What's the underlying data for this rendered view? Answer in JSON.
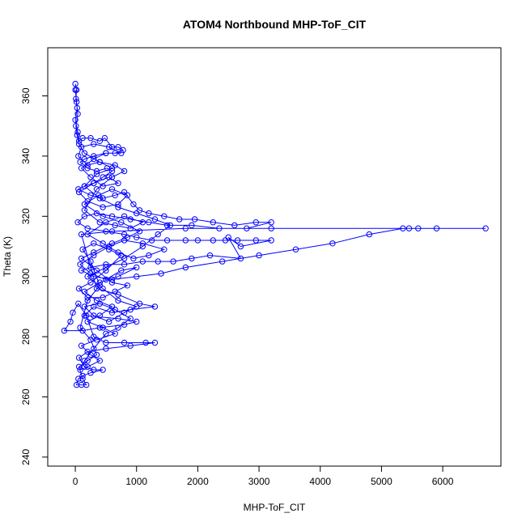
{
  "chart_data": {
    "type": "scatter",
    "title": "ATOM4 Northbound MHP-ToF_CIT",
    "xlabel": "MHP-ToF_CIT",
    "ylabel": "Theta (K)",
    "xlim": [
      -450,
      6950
    ],
    "ylim": [
      237,
      376
    ],
    "x_ticks": [
      0,
      1000,
      2000,
      3000,
      4000,
      5000,
      6000
    ],
    "y_ticks": [
      240,
      260,
      280,
      300,
      320,
      340,
      360
    ],
    "grid": false,
    "legend": "none",
    "series": [
      {
        "color": "#0000FF",
        "marker": "open-circle",
        "line": true,
        "points": [
          [
            0,
            364
          ],
          [
            20,
            362
          ],
          [
            10,
            359
          ],
          [
            30,
            356
          ],
          [
            0,
            352
          ],
          [
            40,
            348
          ],
          [
            60,
            345
          ],
          [
            120,
            346
          ],
          [
            250,
            346
          ],
          [
            400,
            345
          ],
          [
            480,
            346
          ],
          [
            600,
            343
          ],
          [
            700,
            343
          ],
          [
            780,
            342
          ],
          [
            650,
            341
          ],
          [
            500,
            341
          ],
          [
            300,
            340
          ],
          [
            150,
            339
          ],
          [
            80,
            338
          ],
          [
            200,
            336
          ],
          [
            350,
            335
          ],
          [
            520,
            336
          ],
          [
            600,
            335
          ],
          [
            450,
            333
          ],
          [
            300,
            331
          ],
          [
            150,
            330
          ],
          [
            50,
            329
          ],
          [
            250,
            327
          ],
          [
            450,
            326
          ],
          [
            650,
            327
          ],
          [
            800,
            328
          ],
          [
            950,
            324
          ],
          [
            1050,
            322
          ],
          [
            1200,
            321
          ],
          [
            1450,
            320
          ],
          [
            1700,
            319
          ],
          [
            1950,
            319
          ],
          [
            2250,
            318
          ],
          [
            2600,
            317
          ],
          [
            2950,
            318
          ],
          [
            3200,
            318
          ],
          [
            2800,
            316
          ],
          [
            2350,
            316
          ],
          [
            1900,
            317
          ],
          [
            1500,
            317
          ],
          [
            1200,
            318
          ],
          [
            900,
            319
          ],
          [
            600,
            320
          ],
          [
            350,
            321
          ],
          [
            150,
            320
          ],
          [
            40,
            318
          ],
          [
            200,
            316
          ],
          [
            500,
            315
          ],
          [
            800,
            314
          ],
          [
            1000,
            313
          ],
          [
            1250,
            312
          ],
          [
            1500,
            312
          ],
          [
            1800,
            312
          ],
          [
            2000,
            312
          ],
          [
            2250,
            312
          ],
          [
            2450,
            312
          ],
          [
            2650,
            312
          ],
          [
            2950,
            312
          ],
          [
            3200,
            312
          ],
          [
            2700,
            310
          ],
          [
            2500,
            313
          ],
          [
            2700,
            306
          ],
          [
            2200,
            307
          ],
          [
            1900,
            306
          ],
          [
            1600,
            305
          ],
          [
            1350,
            305
          ],
          [
            1100,
            305
          ],
          [
            800,
            304
          ],
          [
            500,
            304
          ],
          [
            250,
            303
          ],
          [
            100,
            302
          ],
          [
            300,
            300
          ],
          [
            600,
            299
          ],
          [
            1000,
            300
          ],
          [
            1400,
            301
          ],
          [
            1800,
            303
          ],
          [
            2400,
            305
          ],
          [
            3000,
            307
          ],
          [
            3600,
            309
          ],
          [
            4200,
            311
          ],
          [
            4800,
            314
          ],
          [
            5350,
            316
          ],
          [
            5450,
            316
          ],
          [
            5600,
            316
          ],
          [
            5900,
            316
          ],
          [
            6700,
            316
          ],
          [
            3200,
            316
          ],
          [
            1800,
            316
          ],
          [
            600,
            315
          ],
          [
            100,
            314
          ],
          [
            350,
            296
          ],
          [
            700,
            294
          ],
          [
            1050,
            291
          ],
          [
            1300,
            290
          ],
          [
            900,
            289
          ],
          [
            600,
            288
          ],
          [
            300,
            290
          ],
          [
            150,
            287
          ],
          [
            700,
            286
          ],
          [
            1000,
            285
          ],
          [
            800,
            284
          ],
          [
            400,
            283
          ],
          [
            120,
            282
          ],
          [
            -180,
            282
          ],
          [
            -80,
            285
          ],
          [
            -40,
            288
          ],
          [
            50,
            291
          ],
          [
            180,
            287
          ],
          [
            300,
            280
          ],
          [
            500,
            278
          ],
          [
            800,
            278
          ],
          [
            1150,
            278
          ],
          [
            1300,
            278
          ],
          [
            900,
            277
          ],
          [
            500,
            276
          ],
          [
            200,
            275
          ],
          [
            60,
            273
          ],
          [
            150,
            270
          ],
          [
            300,
            269
          ],
          [
            450,
            269
          ],
          [
            250,
            268
          ],
          [
            120,
            267
          ],
          [
            50,
            266
          ],
          [
            20,
            264
          ],
          [
            100,
            264
          ],
          [
            180,
            264
          ],
          [
            120,
            266
          ],
          [
            60,
            270
          ],
          [
            200,
            272
          ],
          [
            350,
            274
          ],
          [
            250,
            279
          ],
          [
            80,
            283
          ],
          [
            200,
            292
          ],
          [
            400,
            297
          ],
          [
            250,
            305
          ],
          [
            120,
            309
          ],
          [
            300,
            311
          ],
          [
            550,
            309
          ],
          [
            750,
            307
          ],
          [
            500,
            302
          ],
          [
            250,
            298
          ],
          [
            60,
            296
          ],
          [
            200,
            293
          ],
          [
            450,
            293
          ],
          [
            650,
            295
          ],
          [
            850,
            297
          ],
          [
            600,
            298
          ],
          [
            350,
            302
          ],
          [
            100,
            306
          ],
          [
            300,
            308
          ],
          [
            600,
            311
          ],
          [
            850,
            313
          ],
          [
            1050,
            315
          ],
          [
            750,
            318
          ],
          [
            450,
            320
          ],
          [
            150,
            324
          ],
          [
            380,
            327
          ],
          [
            600,
            329
          ],
          [
            850,
            327
          ],
          [
            700,
            324
          ],
          [
            450,
            323
          ],
          [
            200,
            325
          ],
          [
            60,
            328
          ],
          [
            300,
            331
          ],
          [
            550,
            333
          ],
          [
            700,
            331
          ],
          [
            450,
            330
          ],
          [
            250,
            333
          ],
          [
            100,
            336
          ],
          [
            300,
            339
          ],
          [
            500,
            341
          ],
          [
            750,
            341
          ],
          [
            550,
            343
          ],
          [
            300,
            344
          ],
          [
            100,
            343
          ],
          [
            50,
            340
          ],
          [
            200,
            337
          ],
          [
            400,
            338
          ],
          [
            650,
            337
          ],
          [
            800,
            335
          ],
          [
            600,
            333
          ],
          [
            350,
            329
          ],
          [
            150,
            322
          ],
          [
            400,
            318
          ],
          [
            650,
            317
          ],
          [
            900,
            316
          ],
          [
            1100,
            318
          ],
          [
            800,
            320
          ],
          [
            500,
            318
          ],
          [
            200,
            314
          ],
          [
            450,
            311
          ],
          [
            700,
            308
          ],
          [
            950,
            306
          ],
          [
            1200,
            307
          ],
          [
            1450,
            309
          ],
          [
            1100,
            311
          ],
          [
            800,
            312
          ],
          [
            550,
            310
          ],
          [
            300,
            307
          ],
          [
            80,
            304
          ],
          [
            250,
            301
          ],
          [
            500,
            299
          ],
          [
            750,
            302
          ],
          [
            1000,
            303
          ],
          [
            700,
            300
          ],
          [
            400,
            298
          ],
          [
            150,
            295
          ],
          [
            350,
            292
          ],
          [
            600,
            290
          ],
          [
            400,
            287
          ],
          [
            200,
            285
          ],
          [
            450,
            283
          ],
          [
            650,
            281
          ],
          [
            350,
            279
          ],
          [
            100,
            277
          ],
          [
            250,
            274
          ],
          [
            400,
            272
          ],
          [
            200,
            270
          ],
          [
            80,
            269
          ],
          [
            150,
            272
          ],
          [
            300,
            276
          ],
          [
            500,
            281
          ],
          [
            700,
            283
          ],
          [
            900,
            286
          ],
          [
            650,
            289
          ],
          [
            400,
            291
          ],
          [
            150,
            290
          ],
          [
            300,
            287
          ],
          [
            550,
            285
          ],
          [
            800,
            288
          ],
          [
            1000,
            290
          ],
          [
            700,
            292
          ],
          [
            450,
            296
          ],
          [
            200,
            300
          ],
          [
            500,
            303
          ],
          [
            800,
            306
          ],
          [
            1100,
            310
          ],
          [
            1350,
            314
          ],
          [
            1550,
            317
          ],
          [
            1300,
            319
          ],
          [
            1000,
            321
          ],
          [
            700,
            323
          ],
          [
            400,
            326
          ],
          [
            150,
            330
          ],
          [
            350,
            334
          ],
          [
            600,
            336
          ],
          [
            400,
            338
          ],
          [
            150,
            341
          ],
          [
            60,
            344
          ],
          [
            30,
            347
          ],
          [
            10,
            350
          ],
          [
            40,
            354
          ],
          [
            20,
            358
          ],
          [
            0,
            362
          ]
        ]
      }
    ]
  }
}
